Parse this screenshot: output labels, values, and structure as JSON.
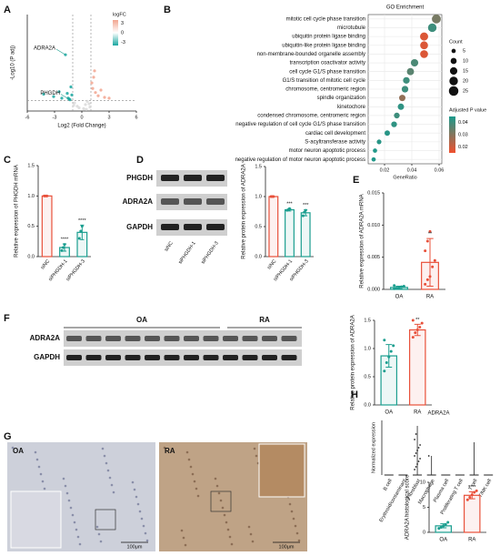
{
  "panel_labels": [
    "A",
    "B",
    "C",
    "D",
    "E",
    "F",
    "G",
    "H"
  ],
  "blots": [
    {
      "rows": [
        "PHGDH",
        "ADRA2A",
        "GAPDH"
      ],
      "lanes": [
        "siNC",
        "siPHGDH-1",
        "siPHGDH-3"
      ]
    },
    {
      "rows": [
        "ADRA2A",
        "GAPDH"
      ],
      "groups": [
        "OA",
        "RA"
      ]
    }
  ],
  "images": [
    {
      "label": "OA",
      "scale_bar": "100μm"
    },
    {
      "label": "RA",
      "scale_bar": "100μm"
    }
  ],
  "chart_data": [
    {
      "type": "scatter",
      "xlabel": "Log2 (Fold Change)",
      "ylabel": "-Log10 (P adj)",
      "xlim": [
        -6,
        6
      ],
      "xticks": [
        -6,
        -3,
        0,
        3,
        6
      ],
      "ylim": [
        0,
        12
      ],
      "vlines": [
        -1,
        1
      ],
      "hline": 1.3,
      "x": [
        -4.2,
        -3.1,
        -2.5,
        -2.2,
        -1.8,
        -1.6,
        -1.4,
        -1.3,
        -1.2,
        -1.1,
        -0.8,
        -0.5,
        -0.3,
        0.2,
        0.4,
        0.6,
        0.8,
        1.1,
        1.2,
        1.3,
        1.5,
        1.8,
        2.1,
        2.5,
        3.0,
        0.9,
        -0.9,
        0.5,
        1.4,
        -1.5
      ],
      "y": [
        2.1,
        1.8,
        2.4,
        1.6,
        7,
        2.2,
        1.5,
        1.4,
        3.0,
        2.0,
        1.0,
        0.6,
        0.4,
        0.3,
        0.8,
        1.2,
        0.9,
        3.5,
        2.8,
        4.2,
        2.3,
        1.9,
        2.6,
        1.7,
        1.6,
        0.5,
        0.7,
        0.2,
        5.0,
        1.6
      ],
      "colors": [
        "#1aa7a0",
        "#d9d9d9",
        "#f2a58f"
      ],
      "annotations": [
        {
          "text": "ADRA2A",
          "x": -1.8,
          "y": 7
        },
        {
          "text": "PHGDH",
          "x": -1.3,
          "y": 1.4
        }
      ],
      "colorbar_title": "logFC",
      "colorbar_ticks": [
        3,
        0,
        -3
      ],
      "clim": [
        -4,
        4
      ]
    },
    {
      "type": "dot",
      "title": "GO Enrichment",
      "xlabel": "GeneRatio",
      "categories": [
        "mitotic cell cycle phase transition",
        "microtubule",
        "ubiquitin protein ligase binding",
        "ubiquitin-like protein ligase binding",
        "non-membrane-bounded organelle assembly",
        "transcription coactivator activity",
        "cell cycle G1/S phase transition",
        "G1/S transition of mitotic cell cycle",
        "chromosome, centromeric region",
        "spindle organization",
        "kinetochore",
        "condensed chromosome, centromeric region",
        "negative regulation of cell cycle G1/S phase transition",
        "cardiac cell development",
        "S-acyltransferase activity",
        "motor neuron apoptotic process",
        "negative regulation of motor neuron apoptotic process"
      ],
      "values": [
        0.058,
        0.055,
        0.049,
        0.049,
        0.049,
        0.042,
        0.039,
        0.036,
        0.035,
        0.033,
        0.032,
        0.029,
        0.027,
        0.022,
        0.016,
        0.013,
        0.012
      ],
      "sizes": [
        22,
        20,
        18,
        17,
        17,
        15,
        14,
        12,
        12,
        11,
        11,
        9,
        9,
        8,
        6,
        5,
        5
      ],
      "padj": [
        0.032,
        0.04,
        0.018,
        0.018,
        0.018,
        0.038,
        0.036,
        0.04,
        0.04,
        0.028,
        0.042,
        0.04,
        0.042,
        0.043,
        0.043,
        0.044,
        0.044
      ],
      "xlim": [
        0.008,
        0.062
      ],
      "xticks": [
        0.02,
        0.04,
        0.06
      ],
      "grid": true,
      "size_legend": {
        "title": "Count",
        "values": [
          5,
          10,
          15,
          20,
          25
        ]
      },
      "color_legend": {
        "title": "Adjusted P value",
        "ticks": [
          0.04,
          0.03,
          0.02
        ]
      },
      "clim": [
        0.015,
        0.045
      ],
      "colors": [
        "#f0502e",
        "#1a9a8c"
      ]
    },
    {
      "type": "bar",
      "ylabel": "Relative expression of PHGDH mRNA",
      "categories": [
        "siNC",
        "siPHGDH-1",
        "siPHGDH-3"
      ],
      "values": [
        1.0,
        0.15,
        0.4
      ],
      "errors": [
        0,
        0.06,
        0.12
      ],
      "points": [
        [
          1,
          1,
          1
        ],
        [
          0.1,
          0.15,
          0.2
        ],
        [
          0.3,
          0.42,
          0.5
        ]
      ],
      "significance": [
        null,
        "****",
        "****"
      ],
      "colors": [
        "#e8503a",
        "#1a9e8f",
        "#1a9e8f"
      ],
      "ylim": [
        0,
        1.5
      ],
      "yticks": [
        {
          "value": 0,
          "label": "0.0"
        },
        {
          "value": 0.5,
          "label": "0.5"
        },
        {
          "value": 1,
          "label": "1.0"
        },
        {
          "value": 1.5,
          "label": "1.5"
        }
      ]
    },
    {
      "type": "bar",
      "ylabel": "Relative protein expression of ADRA2A",
      "categories": [
        "siNC",
        "siPHGDH-1",
        "siPHGDH-3"
      ],
      "values": [
        1.0,
        0.78,
        0.73
      ],
      "errors": [
        0,
        0.02,
        0.05
      ],
      "points": [
        [
          1,
          1,
          1
        ],
        [
          0.77,
          0.78,
          0.8
        ],
        [
          0.68,
          0.74,
          0.77
        ]
      ],
      "significance": [
        null,
        "***",
        "***"
      ],
      "colors": [
        "#e8503a",
        "#1a9e8f",
        "#1a9e8f"
      ],
      "ylim": [
        0,
        1.5
      ],
      "yticks": [
        {
          "value": 0,
          "label": "0.0"
        },
        {
          "value": 0.5,
          "label": "0.5"
        },
        {
          "value": 1,
          "label": "1.0"
        },
        {
          "value": 1.5,
          "label": "1.5"
        }
      ]
    },
    {
      "type": "bar",
      "ylabel": "Relative expression of ADRA2A mRNA",
      "categories": [
        "OA",
        "RA"
      ],
      "values": [
        0.0003,
        0.0042
      ],
      "errors": [
        0.0002,
        0.0037
      ],
      "points": [
        [
          0.0001,
          0.0002,
          0.0003,
          0.0004,
          0.0005,
          0.0006
        ],
        [
          0.0008,
          0.0015,
          0.002,
          0.0035,
          0.0045,
          0.006,
          0.0075,
          0.009
        ]
      ],
      "significance": [
        null,
        "**"
      ],
      "colors": [
        "#1a9e8f",
        "#e8503a"
      ],
      "ylim": [
        0,
        0.015
      ],
      "yticks": [
        {
          "value": 0,
          "label": "0.000"
        },
        {
          "value": 0.005,
          "label": "0.005"
        },
        {
          "value": 0.01,
          "label": "0.010"
        },
        {
          "value": 0.015,
          "label": "0.015"
        }
      ]
    },
    {
      "type": "bar",
      "ylabel": "Relative protein expression of ADRA2A",
      "categories": [
        "OA",
        "RA"
      ],
      "values": [
        0.87,
        1.33
      ],
      "errors": [
        0.2,
        0.1
      ],
      "points": [
        [
          0.6,
          0.75,
          0.85,
          0.95,
          1.05,
          1.15
        ],
        [
          1.2,
          1.28,
          1.33,
          1.38,
          1.45,
          1.5
        ]
      ],
      "significance": [
        null,
        "**"
      ],
      "colors": [
        "#1a9e8f",
        "#e8503a"
      ],
      "ylim": [
        0,
        1.5
      ],
      "yticks": [
        {
          "value": 0,
          "label": "0.0"
        },
        {
          "value": 0.5,
          "label": "0.5"
        },
        {
          "value": 1,
          "label": "1.0"
        },
        {
          "value": 1.5,
          "label": "1.5"
        }
      ]
    },
    {
      "type": "strip",
      "title": "ADRA2A",
      "ylabel": "Normalized expression",
      "categories": [
        "B cell",
        "Erythroid/contaminant",
        "Fibroblast",
        "Macrophage",
        "Plasma cell",
        "Proliferating T cell",
        "T cell",
        "T/NK cell"
      ],
      "values": [
        0,
        0,
        1.8,
        0.7,
        0,
        0,
        1.2,
        0
      ],
      "points": [
        [],
        [],
        [
          0.2,
          0.3,
          0.4,
          0.5,
          0.6,
          0.7,
          0.8,
          0.9,
          1.0,
          1.1,
          1.3,
          1.5
        ],
        [
          0.7
        ],
        [],
        [],
        [],
        []
      ],
      "ylim": [
        0,
        2
      ],
      "color": "#222222"
    },
    {
      "type": "bar",
      "ylabel": "ADRA2A histological score",
      "categories": [
        "OA",
        "RA"
      ],
      "values": [
        1.3,
        7.4
      ],
      "errors": [
        0.4,
        0.7
      ],
      "points": [
        [
          0.8,
          1,
          1.3,
          1.6,
          2
        ],
        [
          6.5,
          7,
          7.5,
          8,
          8.3
        ]
      ],
      "significance": [
        null,
        "****"
      ],
      "colors": [
        "#1a9e8f",
        "#e8503a"
      ],
      "ylim": [
        0,
        10
      ],
      "yticks": [
        0,
        5,
        10
      ]
    }
  ]
}
